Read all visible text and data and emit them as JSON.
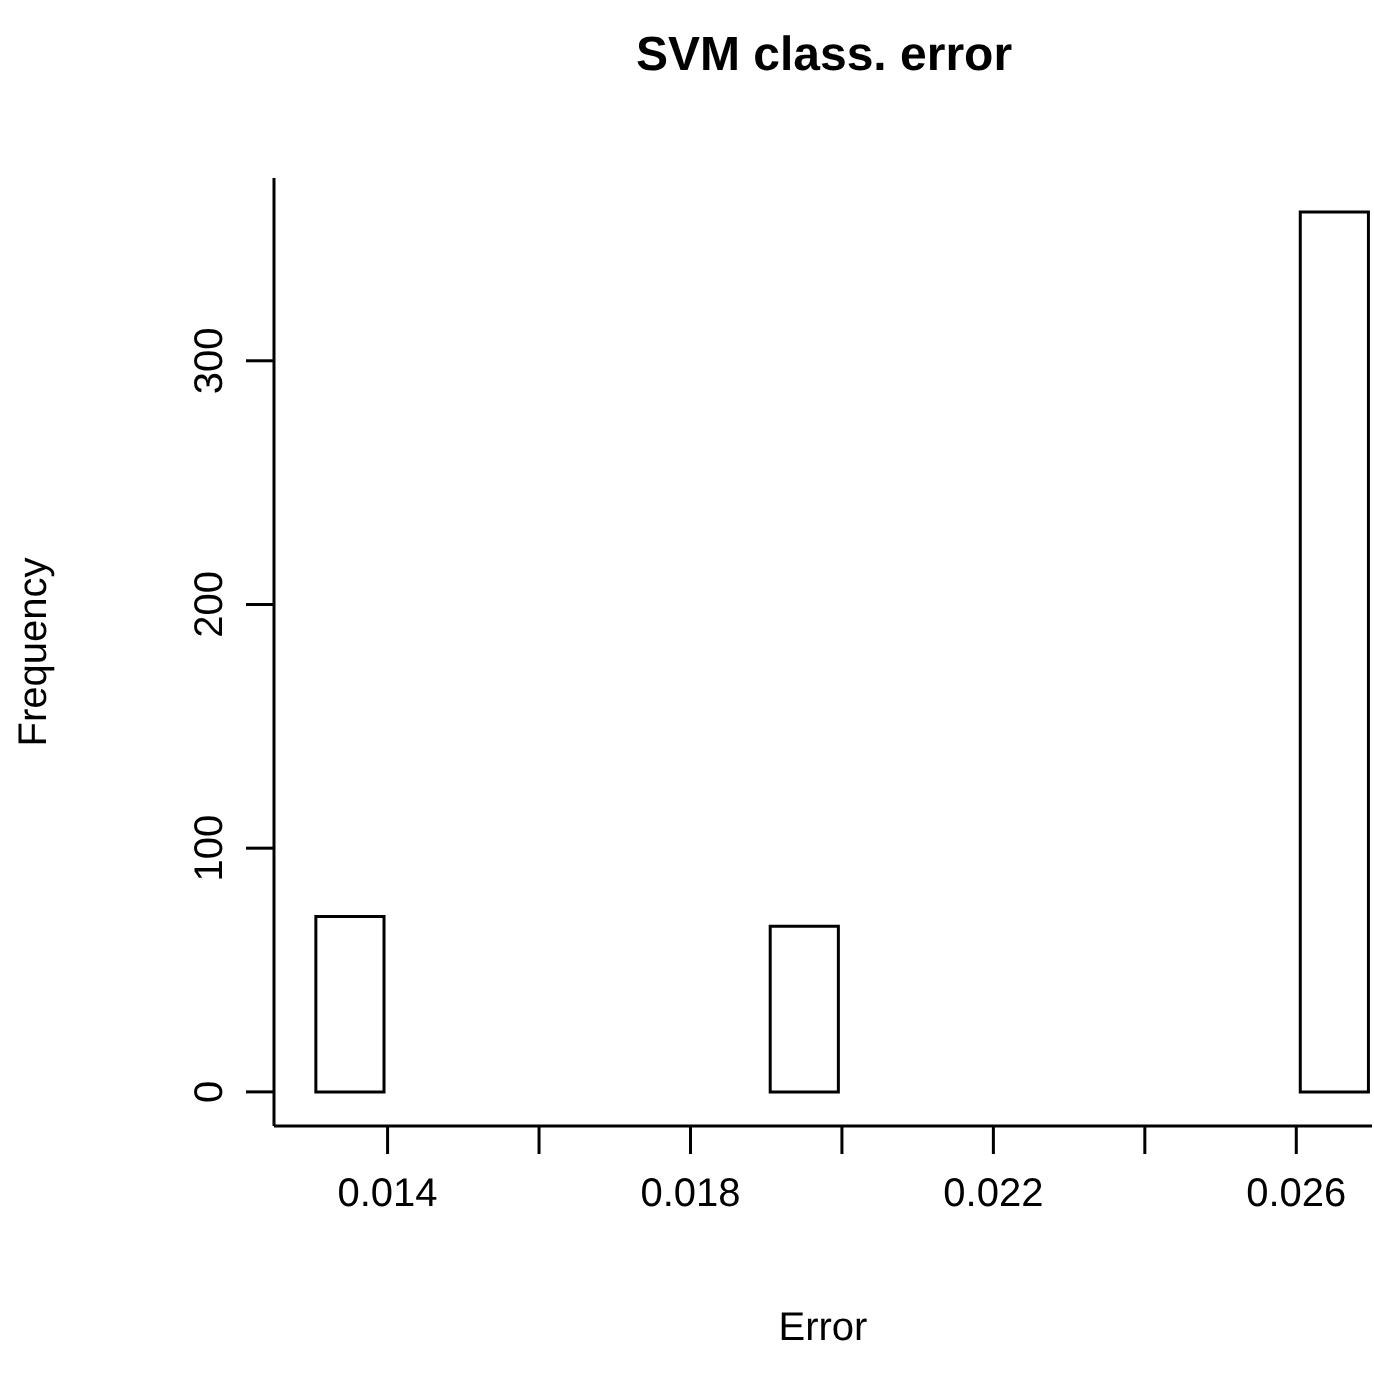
{
  "chart_data": {
    "type": "histogram",
    "title": "SVM class. error",
    "xlabel": "Error",
    "ylabel": "Frequency",
    "bins": [
      0.013,
      0.014,
      0.015,
      0.016,
      0.017,
      0.018,
      0.019,
      0.02,
      0.021,
      0.022,
      0.023,
      0.024,
      0.025,
      0.026,
      0.027
    ],
    "values": [
      72,
      0,
      0,
      0,
      0,
      0,
      68,
      0,
      0,
      0,
      0,
      0,
      0,
      361
    ],
    "color": "#ffffff",
    "xlim": [
      0.0125,
      0.027
    ],
    "xticks": [
      0.014,
      {
        "value": 0.016,
        "label": null
      },
      0.018,
      {
        "value": 0.02,
        "label": null
      },
      0.022,
      {
        "value": 0.024,
        "label": null
      },
      0.026
    ],
    "ylim": [
      -14,
      375
    ],
    "yticks": [
      0,
      100,
      200,
      300
    ]
  }
}
